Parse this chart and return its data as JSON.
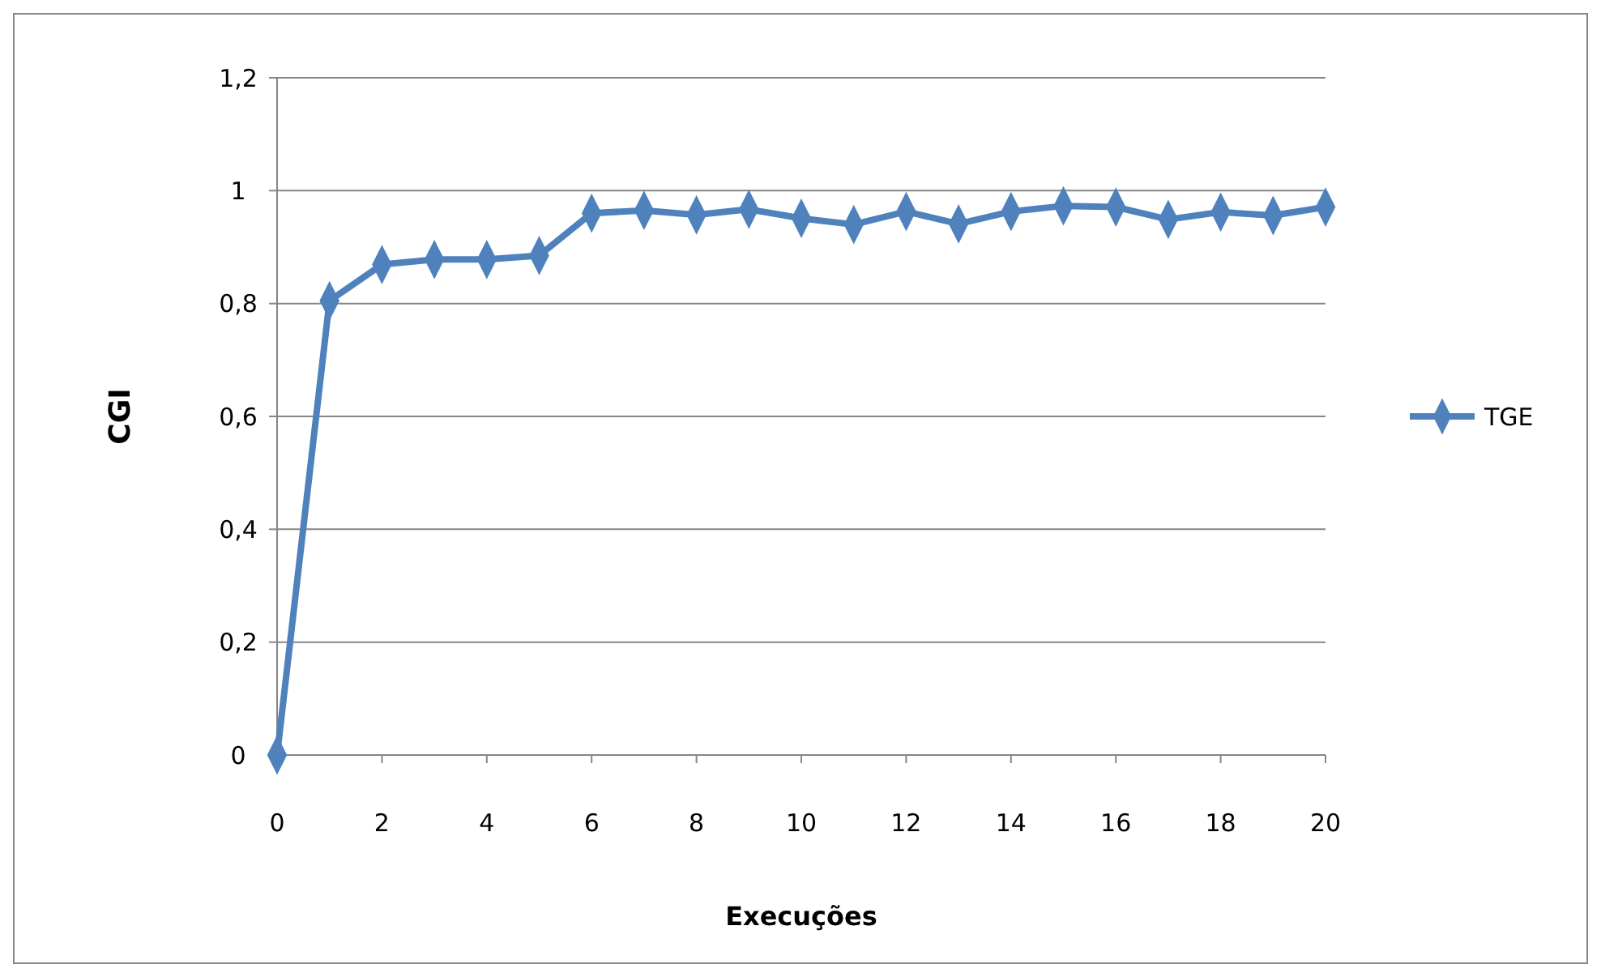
{
  "chart_data": {
    "type": "line",
    "xlabel": "Execuções",
    "ylabel": "CGI",
    "x": [
      0,
      1,
      2,
      3,
      4,
      5,
      6,
      7,
      8,
      9,
      10,
      11,
      12,
      13,
      14,
      15,
      16,
      17,
      18,
      19,
      20
    ],
    "series": [
      {
        "name": "TGE",
        "color": "#4f81bd",
        "values": [
          0,
          0.805,
          0.869,
          0.878,
          0.878,
          0.885,
          0.96,
          0.965,
          0.957,
          0.967,
          0.951,
          0.94,
          0.963,
          0.941,
          0.963,
          0.973,
          0.971,
          0.949,
          0.962,
          0.956,
          0.971
        ]
      }
    ],
    "xlim": [
      0,
      20
    ],
    "xticks": [
      0,
      2,
      4,
      6,
      8,
      10,
      12,
      14,
      16,
      18,
      20
    ],
    "ylim": [
      0,
      1.2
    ],
    "yticks": [
      {
        "value": 0,
        "label": "0"
      },
      {
        "value": 0.2,
        "label": "0,2"
      },
      {
        "value": 0.4,
        "label": "0,4"
      },
      {
        "value": 0.6,
        "label": "0,6"
      },
      {
        "value": 0.8,
        "label": "0,8"
      },
      {
        "value": 1,
        "label": "1"
      },
      {
        "value": 1.2,
        "label": "1,2"
      }
    ],
    "grid": "y",
    "legend": "right",
    "marker": "diamond",
    "line_style": "solid"
  }
}
